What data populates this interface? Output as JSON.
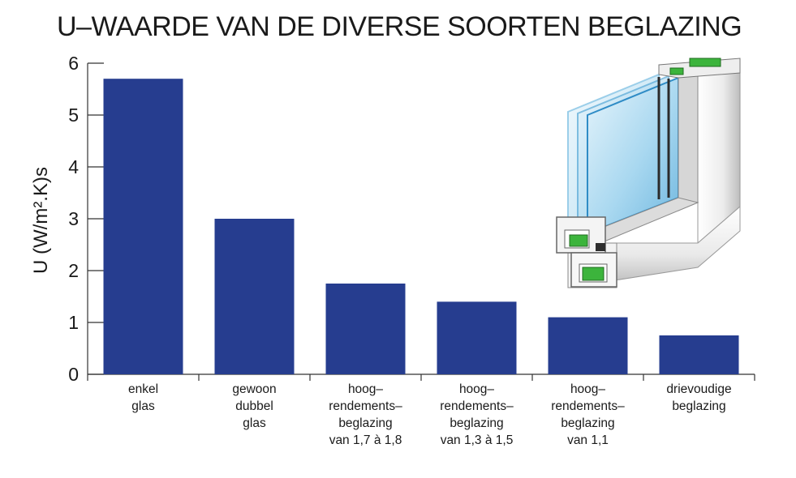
{
  "chart_data": {
    "type": "bar",
    "title": "U–WAARDE VAN DE DIVERSE SOORTEN BEGLAZING",
    "ylabel": "U (W/m².K)s",
    "xlabel": "",
    "ylim": [
      0,
      6
    ],
    "yticks": [
      0,
      1,
      2,
      3,
      4,
      5,
      6
    ],
    "categories": [
      "enkel\nglas",
      "gewoon\ndubbel\nglas",
      "hoog–\nrendements–\nbeglazing\nvan 1,7 à 1,8",
      "hoog–\nrendements–\nbeglazing\nvan 1,3 à 1,5",
      "hoog–\nrendements–\nbeglazing\nvan 1,1",
      "drievoudige\nbeglazing"
    ],
    "values": [
      5.7,
      3.0,
      1.75,
      1.4,
      1.1,
      0.75
    ],
    "bar_color": "#263d8f",
    "grid": false,
    "legend": "none"
  },
  "illustration": {
    "icon": "triple-glazed-window-frame-icon"
  }
}
